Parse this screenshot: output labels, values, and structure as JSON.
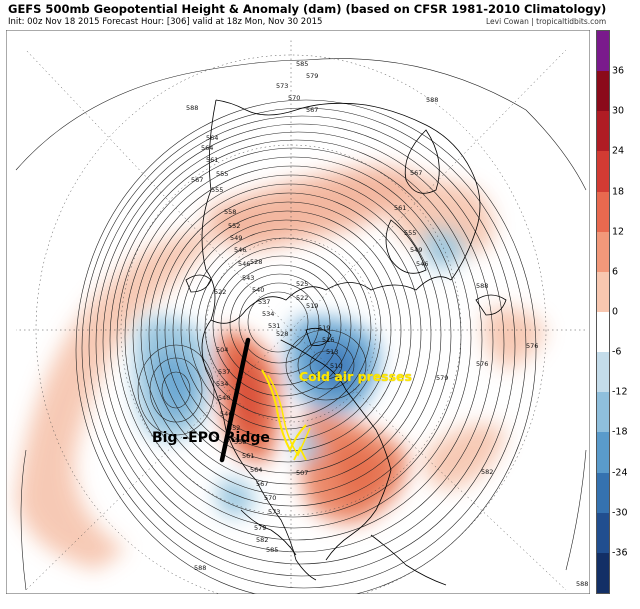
{
  "header": {
    "title": "GEFS 500mb Geopotential Height & Anomaly (dam) (based on CFSR 1981-2010 Climatology)",
    "subtitle": "Init: 00z Nov 18 2015   Forecast Hour: [306]   valid at 18z Mon, Nov 30 2015",
    "credit": "Levi Cowan | tropicaltidbits.com"
  },
  "colorbar": {
    "ticks": [
      "36",
      "30",
      "24",
      "18",
      "12",
      "6",
      "0",
      "-6",
      "-12",
      "-18",
      "-24",
      "-30",
      "-36"
    ],
    "colors": [
      "#7a1a8c",
      "#8b0a1a",
      "#b01c24",
      "#d23b33",
      "#e8694f",
      "#f2987a",
      "#f8c7b0",
      "#ffffff",
      "#c4dcea",
      "#8fbfdc",
      "#5a9bcb",
      "#3572b0",
      "#214e8f",
      "#132f66"
    ]
  },
  "annotations": {
    "ridge_label": "Big -EPO Ridge",
    "cold_label": "Cold air presses"
  },
  "contour_labels": [
    "579",
    "585",
    "588",
    "588",
    "573",
    "570",
    "567",
    "567",
    "564",
    "564",
    "561",
    "558",
    "555",
    "555",
    "552",
    "549",
    "546",
    "546",
    "543",
    "540",
    "537",
    "534",
    "531",
    "528",
    "528",
    "525",
    "522",
    "522",
    "519",
    "519",
    "516",
    "513",
    "510",
    "507",
    "504",
    "537",
    "534",
    "540",
    "546",
    "552",
    "558",
    "561",
    "564",
    "567",
    "570",
    "573",
    "576",
    "576",
    "579",
    "582",
    "585",
    "588",
    "588",
    "588",
    "582",
    "579",
    "567",
    "561",
    "555",
    "549",
    "546"
  ]
}
